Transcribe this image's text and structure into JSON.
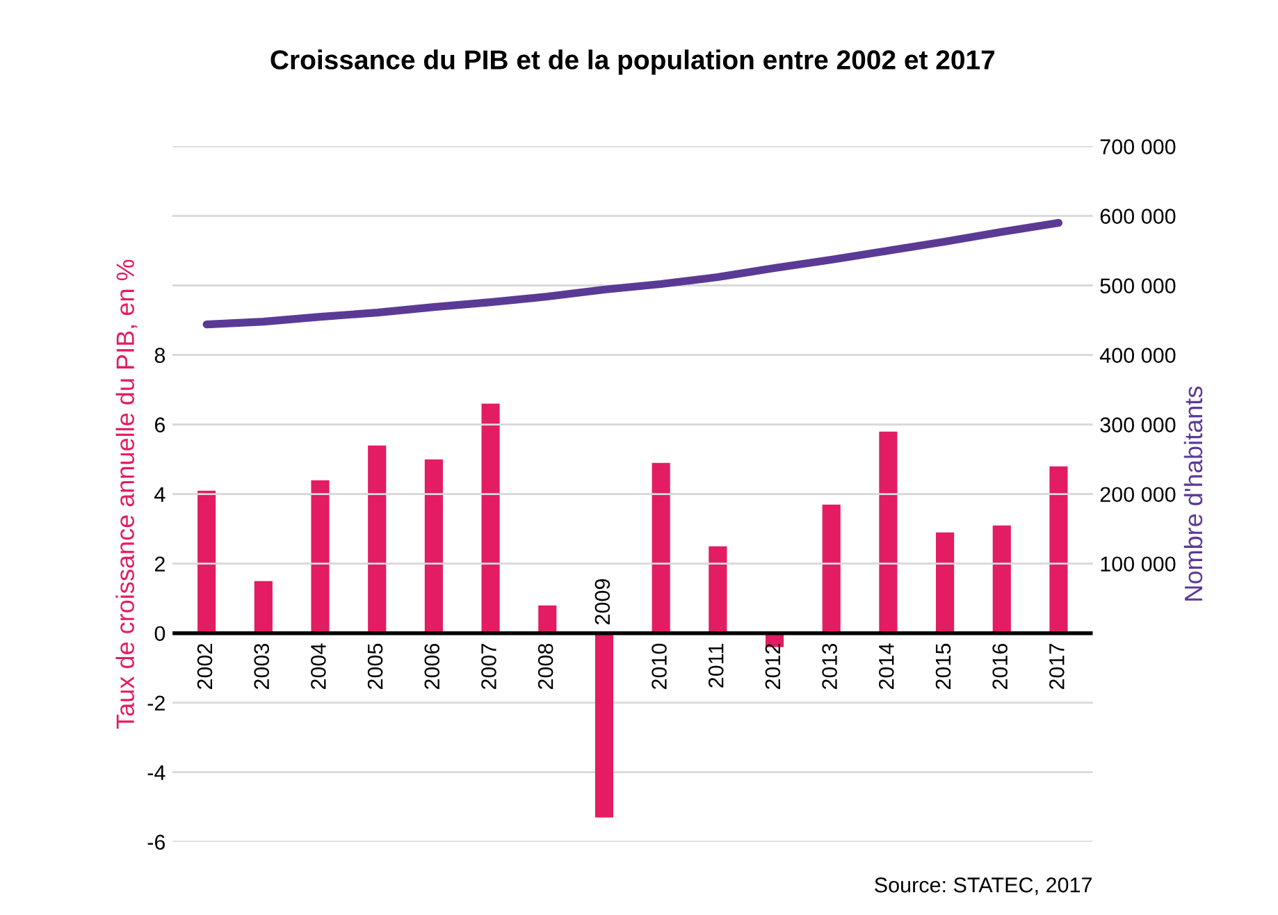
{
  "chart_data": {
    "type": "bar",
    "title": "Croissance du PIB et de la population entre 2002 et 2017",
    "ylabel": "Taux de croissance annuelle du PIB, en %",
    "y2label": "Nombre d'habitants",
    "categories": [
      "2002",
      "2003",
      "2004",
      "2005",
      "2006",
      "2007",
      "2008",
      "2009",
      "2010",
      "2011",
      "2012",
      "2013",
      "2014",
      "2015",
      "2016",
      "2017"
    ],
    "series": [
      {
        "color": "#e31c63",
        "values": [
          4.1,
          1.5,
          4.4,
          5.4,
          5.0,
          6.6,
          0.8,
          -5.3,
          4.9,
          2.5,
          -0.4,
          3.7,
          5.8,
          2.9,
          3.1,
          4.8
        ]
      },
      {
        "type": "line",
        "axis": "y2",
        "color": "#5b3a96",
        "values": [
          444000,
          448000,
          455000,
          461000,
          469000,
          476000,
          484000,
          494000,
          502000,
          512000,
          525000,
          537000,
          550000,
          563000,
          577000,
          590000
        ]
      }
    ],
    "ylim": [
      -6,
      14
    ],
    "yticks": [
      -6,
      -4,
      -2,
      0,
      2,
      4,
      6,
      8,
      {
        "value": 10,
        "label": null
      },
      {
        "value": 12,
        "label": null
      },
      {
        "value": 14,
        "label": null
      }
    ],
    "y2lim": [
      -300000,
      700000
    ],
    "y2ticks": [
      {
        "value": 100000,
        "label": "100 000"
      },
      {
        "value": 200000,
        "label": "200 000"
      },
      {
        "value": 300000,
        "label": "300 000"
      },
      {
        "value": 400000,
        "label": "400 000"
      },
      {
        "value": 500000,
        "label": "500 000"
      },
      {
        "value": 600000,
        "label": "600 000"
      },
      {
        "value": 700000,
        "label": "700 000"
      }
    ],
    "grid": "y",
    "annotations": [
      "Source: STATEC, 2017"
    ]
  }
}
